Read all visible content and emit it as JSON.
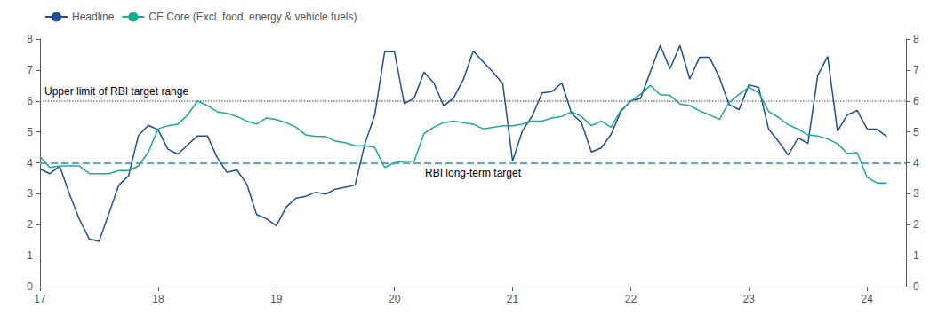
{
  "chart_data": {
    "type": "line",
    "x": [
      2017.0,
      2017.083,
      2017.167,
      2017.25,
      2017.333,
      2017.417,
      2017.5,
      2017.583,
      2017.667,
      2017.75,
      2017.833,
      2017.917,
      2018.0,
      2018.083,
      2018.167,
      2018.25,
      2018.333,
      2018.417,
      2018.5,
      2018.583,
      2018.667,
      2018.75,
      2018.833,
      2018.917,
      2019.0,
      2019.083,
      2019.167,
      2019.25,
      2019.333,
      2019.417,
      2019.5,
      2019.583,
      2019.667,
      2019.75,
      2019.833,
      2019.917,
      2020.0,
      2020.083,
      2020.167,
      2020.25,
      2020.333,
      2020.417,
      2020.5,
      2020.583,
      2020.667,
      2020.75,
      2020.833,
      2020.917,
      2021.0,
      2021.083,
      2021.167,
      2021.25,
      2021.333,
      2021.417,
      2021.5,
      2021.583,
      2021.667,
      2021.75,
      2021.833,
      2021.917,
      2022.0,
      2022.083,
      2022.167,
      2022.25,
      2022.333,
      2022.417,
      2022.5,
      2022.583,
      2022.667,
      2022.75,
      2022.833,
      2022.917,
      2023.0,
      2023.083,
      2023.167,
      2023.25,
      2023.333,
      2023.417,
      2023.5,
      2023.583,
      2023.667,
      2023.75,
      2023.833,
      2023.917,
      2024.0,
      2024.083,
      2024.167
    ],
    "series": [
      {
        "name": "Headline",
        "color": "#1f4e99",
        "values": [
          3.8,
          3.65,
          3.89,
          2.99,
          2.18,
          1.54,
          1.46,
          2.36,
          3.28,
          3.58,
          4.88,
          5.21,
          5.07,
          4.44,
          4.28,
          4.58,
          4.87,
          4.87,
          4.17,
          3.69,
          3.77,
          3.31,
          2.33,
          2.19,
          1.97,
          2.57,
          2.86,
          2.92,
          3.05,
          2.99,
          3.15,
          3.21,
          3.28,
          4.62,
          5.54,
          7.59,
          7.59,
          5.91,
          6.09,
          6.93,
          6.58,
          5.84,
          6.09,
          6.69,
          7.61,
          7.27,
          6.93,
          6.56,
          4.06,
          5.03,
          5.52,
          6.26,
          6.3,
          6.58,
          5.59,
          5.3,
          4.35,
          4.48,
          4.91,
          5.66,
          6.01,
          6.07,
          6.95,
          7.79,
          7.04,
          7.79,
          6.71,
          7.41,
          7.41,
          6.77,
          5.88,
          5.72,
          6.52,
          6.44,
          5.09,
          4.7,
          4.25,
          4.81,
          4.63,
          6.83,
          7.44,
          5.02,
          5.55,
          5.69,
          5.1,
          5.09,
          4.85
        ]
      },
      {
        "name": "CE Core (Excl. food, energy & vehicle fuels)",
        "color": "#1aaa96",
        "values": [
          4.2,
          3.85,
          3.9,
          3.9,
          3.9,
          3.65,
          3.65,
          3.65,
          3.75,
          3.75,
          3.9,
          4.35,
          5.1,
          5.2,
          5.25,
          5.55,
          6.0,
          5.85,
          5.65,
          5.6,
          5.5,
          5.35,
          5.25,
          5.45,
          5.4,
          5.3,
          5.15,
          4.9,
          4.85,
          4.85,
          4.7,
          4.65,
          4.55,
          4.55,
          4.5,
          3.85,
          4.0,
          4.05,
          4.05,
          4.95,
          5.15,
          5.3,
          5.35,
          5.3,
          5.25,
          5.1,
          5.15,
          5.2,
          5.2,
          5.25,
          5.35,
          5.35,
          5.45,
          5.5,
          5.65,
          5.5,
          5.2,
          5.35,
          5.15,
          5.7,
          5.98,
          6.22,
          6.5,
          6.2,
          6.18,
          5.9,
          5.85,
          5.68,
          5.55,
          5.4,
          5.95,
          6.21,
          6.44,
          6.27,
          5.66,
          5.47,
          5.23,
          5.09,
          4.9,
          4.87,
          4.77,
          4.62,
          4.3,
          4.33,
          3.54,
          3.35,
          3.35
        ]
      }
    ],
    "reference_lines": [
      {
        "y": 6.0,
        "label": "Upper limit of RBI target range",
        "color": "#808080",
        "line_style": "dotted"
      },
      {
        "y": 4.0,
        "label": "RBI long-term target",
        "color": "#5ba3d9",
        "line_style": "dashed"
      }
    ],
    "xlim": [
      2017.0,
      2024.33
    ],
    "xticks": [
      {
        "value": 2017,
        "label": "17"
      },
      {
        "value": 2018,
        "label": "18"
      },
      {
        "value": 2019,
        "label": "19"
      },
      {
        "value": 2020,
        "label": "20"
      },
      {
        "value": 2021,
        "label": "21"
      },
      {
        "value": 2022,
        "label": "22"
      },
      {
        "value": 2023,
        "label": "23"
      },
      {
        "value": 2024,
        "label": "24"
      }
    ],
    "ylim": [
      0,
      8
    ],
    "yticks": [
      0,
      1,
      2,
      3,
      4,
      5,
      6,
      7,
      8
    ],
    "y2lim": [
      0,
      8
    ],
    "y2ticks": [
      0,
      1,
      2,
      3,
      4,
      5,
      6,
      7,
      8
    ],
    "grid": false,
    "legend": "top left"
  }
}
